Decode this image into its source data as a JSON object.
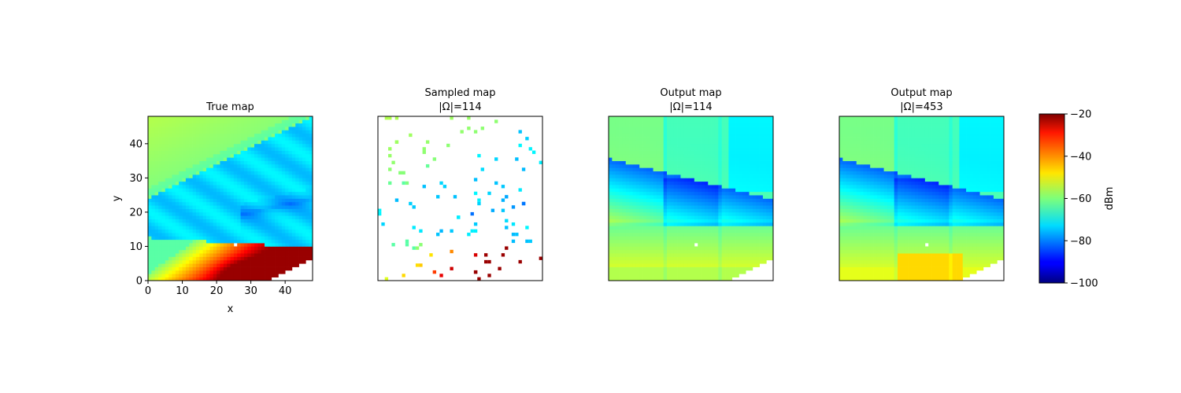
{
  "chart_data": {
    "type": "heatmap",
    "grid_size": 48,
    "colormap": "jet",
    "colorbar": {
      "label": "dBm",
      "vmin": -100,
      "vmax": -20,
      "ticks": [
        -20,
        -40,
        -60,
        -80,
        -100
      ]
    },
    "obstacle": {
      "x": 25,
      "y": 10
    },
    "panels": [
      {
        "id": "true",
        "title": [
          "True map"
        ],
        "xlabel": "x",
        "ylabel": "y",
        "xlim": [
          0,
          48
        ],
        "ylim": [
          0,
          48
        ],
        "xticks": [
          0,
          10,
          20,
          30,
          40
        ],
        "yticks": [
          0,
          10,
          20,
          30,
          40
        ],
        "show_axes_ticks": true
      },
      {
        "id": "sampled",
        "title": [
          "Sampled map",
          "|Ω|=114"
        ],
        "show_axes_ticks": false
      },
      {
        "id": "out114",
        "title": [
          "Output map",
          "|Ω|=114"
        ],
        "show_axes_ticks": false
      },
      {
        "id": "out453",
        "title": [
          "Output map",
          "|Ω|=453"
        ],
        "show_axes_ticks": false
      }
    ],
    "samples_count": 114
  }
}
